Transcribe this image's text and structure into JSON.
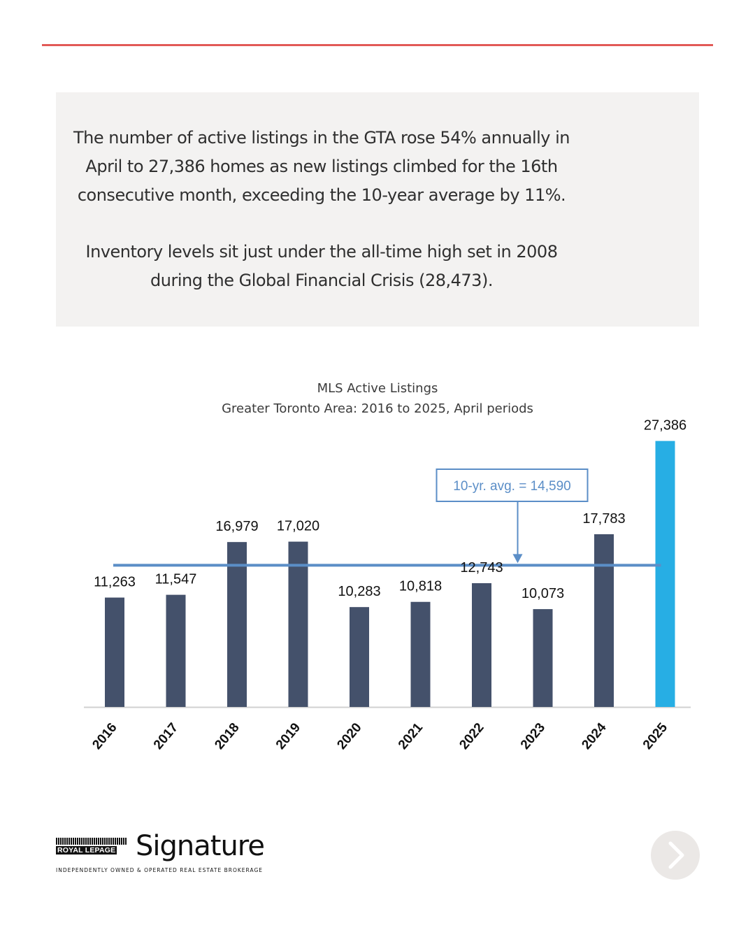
{
  "summary": {
    "paragraph1_lines": [
      "The number of active listings in the GTA rose 54% annually in",
      "April to 27,386 homes as new listings climbed for the 16th",
      "consecutive month, exceeding the 10-year average by 11%."
    ],
    "paragraph2_lines": [
      "Inventory levels sit just under the all-time high set in 2008",
      "during the Global Financial Crisis (28,473)."
    ]
  },
  "chart_data": {
    "type": "bar",
    "title": "MLS Active Listings",
    "subtitle": "Greater Toronto Area: 2016 to 2025, April periods",
    "xlabel": "",
    "ylabel": "",
    "categories": [
      "2016",
      "2017",
      "2018",
      "2019",
      "2020",
      "2021",
      "2022",
      "2023",
      "2024",
      "2025"
    ],
    "values": [
      11263,
      11547,
      16979,
      17020,
      10283,
      10818,
      12743,
      10073,
      17783,
      27386
    ],
    "value_labels": [
      "11,263",
      "11,547",
      "16,979",
      "17,020",
      "10,283",
      "10,818",
      "12,743",
      "10,073",
      "17,783",
      "27,386"
    ],
    "ylim": [
      0,
      28000
    ],
    "grid": false,
    "legend": "none",
    "reference_line": {
      "label": "10-yr. avg. = 14,590",
      "value": 14590,
      "annotation_category": "2023"
    },
    "colors": {
      "bar": "#44516b",
      "highlight_bar": "#27aee4",
      "reference_line": "#5b8ec7",
      "axis": "#d0d0d0"
    },
    "highlight_category": "2025"
  },
  "brand": {
    "badge_text": "ROYAL LEPAGE",
    "name": "Signature",
    "tagline": "INDEPENDENTLY OWNED & OPERATED REAL ESTATE BROKERAGE"
  },
  "navigation": {
    "next_icon": "chevron-right-icon"
  },
  "colors": {
    "accent_rule": "#e25a57",
    "summary_background": "#f3f2f1",
    "next_button_background": "#ebe8e6"
  }
}
